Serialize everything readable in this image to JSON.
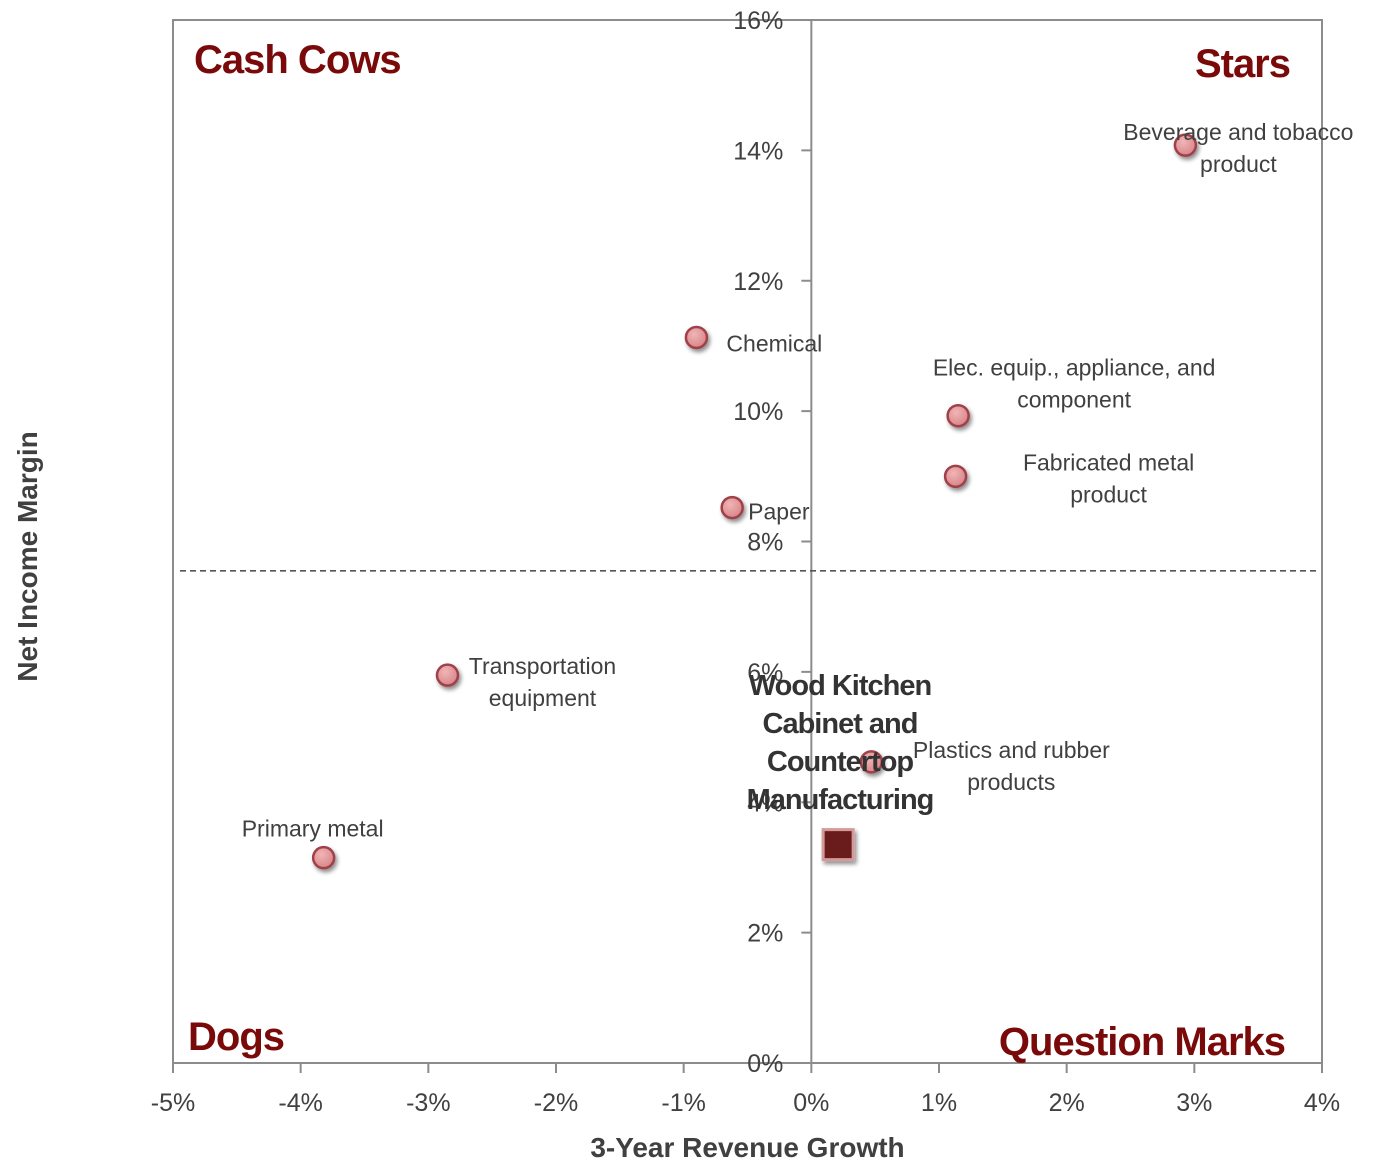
{
  "chart_data": {
    "type": "scatter",
    "xlabel": "3-Year Revenue Growth",
    "ylabel": "Net Income Margin",
    "xlim": [
      -0.05,
      0.04
    ],
    "ylim": [
      0,
      0.16
    ],
    "x_ticks": [
      "-5%",
      "-4%",
      "-3%",
      "-2%",
      "-1%",
      "0%",
      "1%",
      "2%",
      "3%",
      "4%"
    ],
    "y_ticks": [
      "0%",
      "2%",
      "4%",
      "6%",
      "8%",
      "10%",
      "12%",
      "14%",
      "16%"
    ],
    "grid": false,
    "reference_line_y": 0.0755,
    "quadrant_labels": {
      "top_left": "Cash Cows",
      "top_right": "Stars",
      "bottom_left": "Dogs",
      "bottom_right": "Question Marks"
    },
    "marker_color": "#d9868a",
    "marker_edge_color": "#a04048",
    "focus_color": "#6b1c1c",
    "points": [
      {
        "label_lines": [
          "Beverage  and tobacco",
          "product"
        ],
        "x": 0.0293,
        "y": 0.1408
      },
      {
        "label_lines": [
          "Chemical"
        ],
        "x": -0.009,
        "y": 0.1113
      },
      {
        "label_lines": [
          "Elec. equip., appliance, and",
          "component"
        ],
        "x": 0.0115,
        "y": 0.0993
      },
      {
        "label_lines": [
          "Fabricated metal",
          "product"
        ],
        "x": 0.0113,
        "y": 0.09
      },
      {
        "label_lines": [
          "Paper"
        ],
        "x": -0.0062,
        "y": 0.0852
      },
      {
        "label_lines": [
          "Transportation",
          "equipment"
        ],
        "x": -0.0285,
        "y": 0.0595
      },
      {
        "label_lines": [
          "Plastics and rubber",
          "products"
        ],
        "x": 0.0047,
        "y": 0.0462
      },
      {
        "label_lines": [
          "Primary metal"
        ],
        "x": -0.0382,
        "y": 0.0315
      }
    ],
    "focus_point": {
      "label_lines": [
        "Wood Kitchen",
        "Cabinet and",
        "Countertop",
        "Manufacturing"
      ],
      "x": 0.0021,
      "y": 0.0335
    }
  }
}
